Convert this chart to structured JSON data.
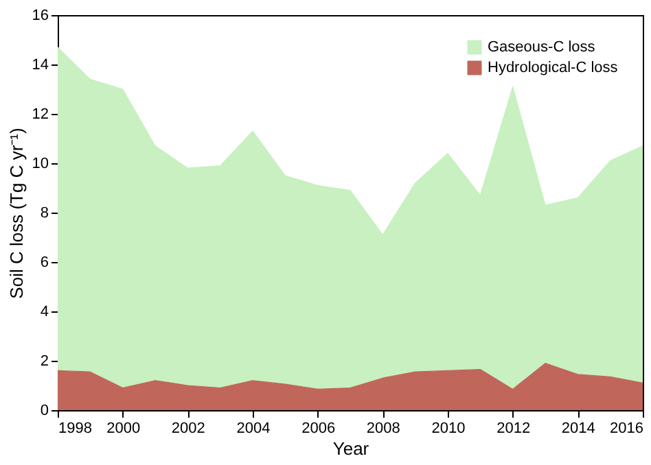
{
  "chart_data": {
    "type": "area",
    "stacked": true,
    "xlabel": "Year",
    "ylabel": "Soil C loss (Tg C yr⁻¹)",
    "x": [
      1998,
      1999,
      2000,
      2001,
      2002,
      2003,
      2004,
      2005,
      2006,
      2007,
      2008,
      2009,
      2010,
      2011,
      2012,
      2013,
      2014,
      2015,
      2016
    ],
    "series": [
      {
        "name": "Hydrological-C loss",
        "color": "#c0665a",
        "values": [
          1.6,
          1.55,
          0.9,
          1.2,
          1.0,
          0.9,
          1.2,
          1.05,
          0.85,
          0.9,
          1.3,
          1.55,
          1.6,
          1.65,
          0.85,
          1.9,
          1.45,
          1.35,
          1.1
        ]
      },
      {
        "name": "Gaseous-C loss",
        "color": "#c8f0c0",
        "values": [
          13.1,
          11.85,
          12.1,
          9.5,
          8.8,
          9.0,
          10.1,
          8.45,
          8.25,
          8.0,
          5.8,
          7.65,
          8.8,
          7.05,
          12.25,
          6.4,
          7.15,
          8.75,
          9.6
        ]
      }
    ],
    "xlim": [
      1998,
      2016
    ],
    "xticks": [
      1998,
      2000,
      2002,
      2004,
      2006,
      2008,
      2010,
      2012,
      2014,
      2016
    ],
    "ylim": [
      0,
      16
    ],
    "yticks": [
      0,
      2,
      4,
      6,
      8,
      10,
      12,
      14,
      16
    ],
    "grid": false,
    "legend": "top right"
  }
}
